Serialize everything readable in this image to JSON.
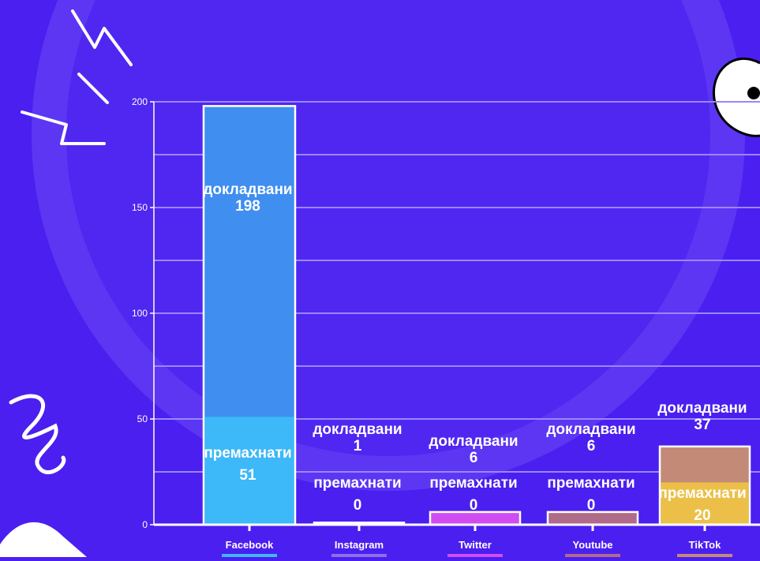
{
  "theme": {
    "background": "#4a1ff0",
    "gridline": "#9a86ff",
    "axis": "#ffffff",
    "text": "#ffffff"
  },
  "chart_data": {
    "type": "bar",
    "stacked": "overlay",
    "categories": [
      "Facebook",
      "Instagram",
      "Twitter",
      "Youtube",
      "TikTok"
    ],
    "series": [
      {
        "name": "докладвани",
        "values": [
          198,
          1,
          6,
          6,
          37
        ],
        "colors": [
          "#3f8ef0",
          "#8d6fe8",
          "#d04cf2",
          "#b06b8a",
          "#c48a78"
        ]
      },
      {
        "name": "премахнати",
        "values": [
          51,
          0,
          0,
          0,
          20
        ],
        "colors": [
          "#3db8f8",
          "#8d6fe8",
          "#d04cf2",
          "#b06b8a",
          "#ecc048"
        ]
      }
    ],
    "ylim": [
      0,
      200
    ],
    "yticks": [
      0,
      50,
      100,
      150,
      200
    ],
    "grid": true,
    "legend": "none",
    "xlabel": "",
    "ylabel": "",
    "title": ""
  },
  "decor": {
    "category_swatch_colors": [
      "#3db8f8",
      "#8d6fe8",
      "#d04cf2",
      "#b06b8a",
      "#c48a78"
    ]
  }
}
